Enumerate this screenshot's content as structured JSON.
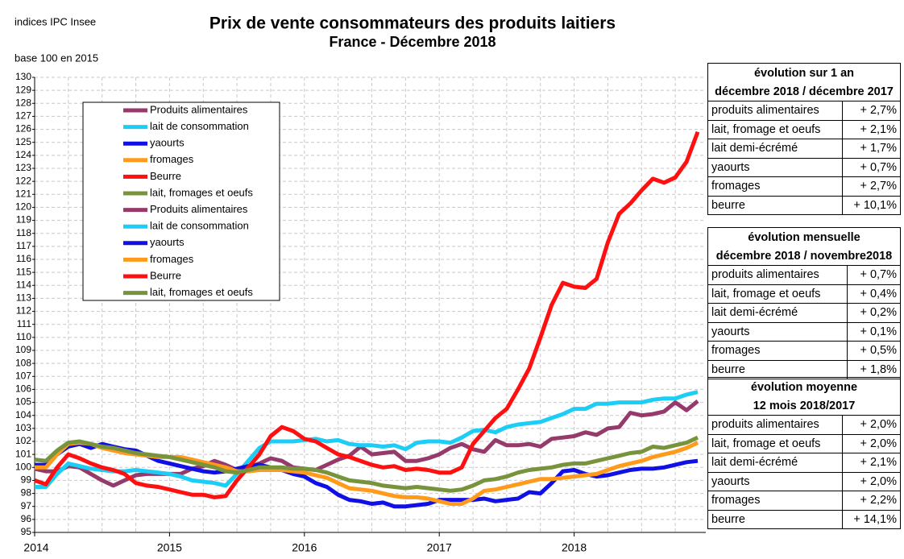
{
  "source": "indices IPC Insee",
  "base_note": "base 100 en 2015",
  "chart_data": {
    "type": "line",
    "title": "Prix de vente consommateurs  des produits laitiers",
    "subtitle": "France - Décembre 2018",
    "categories": [
      "2014",
      null,
      null,
      null,
      null,
      null,
      null,
      null,
      null,
      null,
      null,
      null,
      "2015",
      null,
      null,
      null,
      null,
      null,
      null,
      null,
      null,
      null,
      null,
      null,
      "2016",
      null,
      null,
      null,
      null,
      null,
      null,
      null,
      null,
      null,
      null,
      null,
      "2017",
      null,
      null,
      null,
      null,
      null,
      null,
      null,
      null,
      null,
      null,
      null,
      "2018",
      null,
      null,
      null,
      null,
      null,
      null,
      null,
      null,
      null,
      null,
      null
    ],
    "ylim": [
      95,
      130
    ],
    "yticks": [
      95,
      96,
      97,
      98,
      99,
      100,
      101,
      102,
      103,
      104,
      105,
      106,
      107,
      108,
      109,
      110,
      111,
      112,
      113,
      114,
      115,
      116,
      117,
      118,
      119,
      120,
      121,
      122,
      123,
      124,
      125,
      126,
      127,
      128,
      129,
      130
    ],
    "grid": true,
    "series": [
      {
        "name": "Produits alimentaires",
        "color": "#953a6a",
        "values": [
          99.9,
          99.7,
          99.7,
          100.1,
          100.0,
          99.5,
          99.0,
          98.6,
          99.0,
          99.4,
          99.5,
          99.5,
          99.5,
          99.5,
          99.9,
          100.1,
          100.5,
          100.2,
          99.8,
          100.0,
          100.3,
          100.7,
          100.5,
          100.0,
          99.9,
          99.8,
          100.2,
          100.6,
          100.9,
          101.6,
          101.0,
          101.1,
          101.2,
          100.5,
          100.5,
          100.7,
          101.0,
          101.5,
          101.8,
          101.4,
          101.2,
          102.1,
          101.7,
          101.7,
          101.8,
          101.6,
          102.2,
          102.3,
          102.4,
          102.7,
          102.5,
          103.0,
          103.1,
          104.2,
          104.0,
          104.1,
          104.3,
          105.0,
          104.4,
          105.1
        ]
      },
      {
        "name": "lait de consommation",
        "color": "#1ccdf5",
        "values": [
          98.5,
          98.5,
          99.5,
          100.3,
          100.1,
          99.9,
          99.8,
          99.7,
          99.7,
          99.8,
          99.7,
          99.6,
          99.5,
          99.3,
          99.0,
          98.9,
          98.8,
          98.6,
          99.5,
          100.5,
          101.5,
          102.0,
          102.0,
          102.0,
          102.1,
          102.2,
          102.0,
          102.1,
          101.8,
          101.7,
          101.7,
          101.6,
          101.7,
          101.4,
          101.9,
          102.0,
          102.0,
          101.9,
          102.3,
          102.8,
          102.9,
          102.7,
          103.1,
          103.3,
          103.4,
          103.5,
          103.8,
          104.1,
          104.5,
          104.5,
          104.9,
          104.9,
          105.0,
          105.0,
          105.0,
          105.2,
          105.3,
          105.3,
          105.6,
          105.8
        ]
      },
      {
        "name": "yaourts",
        "color": "#1010e6",
        "values": [
          100.2,
          100.2,
          101.0,
          101.6,
          101.8,
          101.5,
          101.8,
          101.6,
          101.4,
          101.3,
          100.9,
          100.5,
          100.3,
          100.1,
          99.9,
          99.7,
          99.6,
          99.7,
          99.9,
          100.1,
          100.2,
          100.0,
          99.8,
          99.5,
          99.3,
          98.8,
          98.5,
          97.9,
          97.5,
          97.4,
          97.2,
          97.3,
          97.0,
          97.0,
          97.1,
          97.2,
          97.5,
          97.5,
          97.5,
          97.5,
          97.6,
          97.4,
          97.5,
          97.6,
          98.1,
          98.0,
          98.8,
          99.7,
          99.8,
          99.5,
          99.3,
          99.4,
          99.6,
          99.8,
          99.9,
          99.9,
          100.0,
          100.2,
          100.4,
          100.5
        ]
      },
      {
        "name": "fromages",
        "color": "#ff9a1a",
        "values": [
          100.0,
          100.0,
          101.0,
          101.8,
          101.9,
          101.8,
          101.5,
          101.3,
          101.1,
          101.0,
          100.9,
          100.8,
          100.8,
          100.8,
          100.6,
          100.4,
          100.2,
          100.0,
          99.7,
          99.7,
          99.8,
          99.8,
          99.8,
          99.7,
          99.6,
          99.4,
          99.2,
          98.8,
          98.4,
          98.3,
          98.2,
          98.0,
          97.8,
          97.7,
          97.7,
          97.6,
          97.4,
          97.2,
          97.2,
          97.6,
          98.2,
          98.3,
          98.5,
          98.7,
          98.9,
          99.1,
          99.1,
          99.2,
          99.3,
          99.4,
          99.5,
          99.8,
          100.1,
          100.3,
          100.5,
          100.8,
          101.0,
          101.2,
          101.5,
          101.9
        ]
      },
      {
        "name": "Beurre",
        "color": "#ff1010",
        "values": [
          99.0,
          98.7,
          100.0,
          101.0,
          100.7,
          100.3,
          100.0,
          99.8,
          99.5,
          98.8,
          98.6,
          98.5,
          98.3,
          98.1,
          97.9,
          97.9,
          97.7,
          97.8,
          99.0,
          100.0,
          101.0,
          102.4,
          103.1,
          102.8,
          102.2,
          102.0,
          101.5,
          101.0,
          100.8,
          100.5,
          100.2,
          100.0,
          100.1,
          99.8,
          99.9,
          99.8,
          99.6,
          99.6,
          100.0,
          101.8,
          102.8,
          103.8,
          104.5,
          106.0,
          107.6,
          110.0,
          112.5,
          114.2,
          113.9,
          113.8,
          114.5,
          117.3,
          119.5,
          120.3,
          121.3,
          122.2,
          121.9,
          122.3,
          123.5,
          125.8
        ]
      },
      {
        "name": "lait, fromages et oeufs",
        "color": "#77933c",
        "values": [
          100.6,
          100.5,
          101.3,
          101.9,
          102.0,
          101.8,
          101.6,
          101.5,
          101.3,
          101.1,
          101.0,
          100.9,
          100.8,
          100.6,
          100.4,
          100.2,
          100.0,
          99.7,
          99.6,
          99.8,
          100.0,
          100.0,
          100.0,
          99.9,
          99.9,
          99.8,
          99.6,
          99.3,
          99.0,
          98.9,
          98.8,
          98.6,
          98.5,
          98.4,
          98.5,
          98.4,
          98.3,
          98.2,
          98.3,
          98.6,
          99.0,
          99.1,
          99.3,
          99.6,
          99.8,
          99.9,
          100.0,
          100.2,
          100.3,
          100.3,
          100.5,
          100.7,
          100.9,
          101.1,
          101.2,
          101.6,
          101.5,
          101.7,
          101.9,
          102.3
        ]
      }
    ]
  },
  "tables": [
    {
      "header": [
        "évolution sur 1 an",
        "décembre 2018 / décembre 2017"
      ],
      "rows": [
        [
          "produits alimentaires",
          "+ 2,7%"
        ],
        [
          "lait, fromage et oeufs",
          "+ 2,1%"
        ],
        [
          "lait demi-écrémé",
          "+ 1,7%"
        ],
        [
          "yaourts",
          "+ 0,7%"
        ],
        [
          "fromages",
          "+ 2,7%"
        ],
        [
          "beurre",
          "+ 10,1%"
        ]
      ]
    },
    {
      "header": [
        "évolution mensuelle",
        "décembre 2018 / novembre2018"
      ],
      "rows": [
        [
          "produits alimentaires",
          "+ 0,7%"
        ],
        [
          "lait, fromage et oeufs",
          "+ 0,4%"
        ],
        [
          "lait demi-écrémé",
          "+ 0,2%"
        ],
        [
          "yaourts",
          "+ 0,1%"
        ],
        [
          "fromages",
          "+ 0,5%"
        ],
        [
          "beurre",
          "+ 1,8%"
        ]
      ]
    },
    {
      "header": [
        "évolution moyenne",
        "12 mois 2018/2017"
      ],
      "rows": [
        [
          "produits alimentaires",
          "+ 2,0%"
        ],
        [
          "lait, fromage et oeufs",
          "+ 2,0%"
        ],
        [
          "lait demi-écrémé",
          "+ 2,1%"
        ],
        [
          "yaourts",
          "+ 2,0%"
        ],
        [
          "fromages",
          "+ 2,2%"
        ],
        [
          "beurre",
          "+ 14,1%"
        ]
      ]
    }
  ]
}
